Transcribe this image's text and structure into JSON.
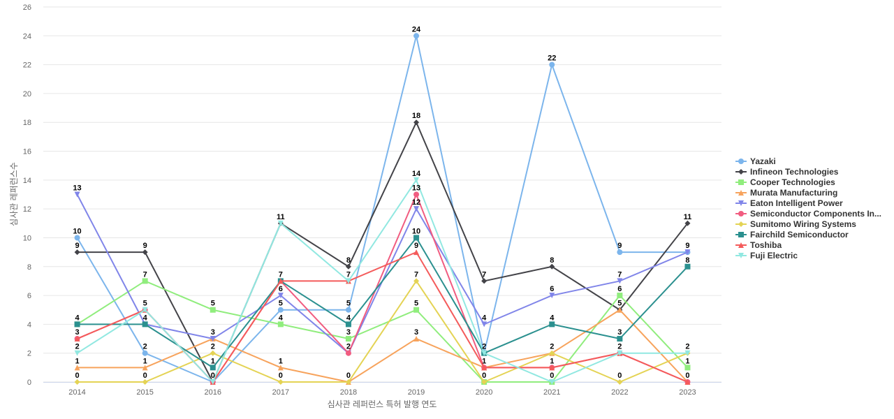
{
  "chart_data": {
    "type": "line",
    "title": "",
    "xlabel": "심사관 레퍼런스 특허 발행 연도",
    "ylabel": "심사관 레퍼런스수",
    "x": [
      "2014",
      "2015",
      "2016",
      "2017",
      "2018",
      "2019",
      "2020",
      "2021",
      "2022",
      "2023"
    ],
    "yticks": [
      0,
      2,
      4,
      6,
      8,
      10,
      12,
      14,
      16,
      18,
      20,
      22,
      24,
      26
    ],
    "ylim": [
      0,
      26
    ],
    "grid": true,
    "legend_position": "right",
    "series": [
      {
        "name": "Yazaki",
        "color": "#7cb5ec",
        "marker": "circle",
        "values": [
          10,
          2,
          0,
          5,
          5,
          24,
          2,
          22,
          9,
          9
        ]
      },
      {
        "name": "Infineon Technologies",
        "color": "#434348",
        "marker": "diamond",
        "values": [
          9,
          9,
          0,
          11,
          8,
          18,
          7,
          8,
          5,
          11
        ]
      },
      {
        "name": "Cooper Technologies",
        "color": "#90ed7d",
        "marker": "square",
        "values": [
          4,
          7,
          5,
          4,
          3,
          5,
          0,
          0,
          6,
          1
        ]
      },
      {
        "name": "Murata Manufacturing",
        "color": "#f7a35c",
        "marker": "triangle",
        "values": [
          1,
          1,
          3,
          1,
          0,
          3,
          1,
          2,
          5,
          0
        ]
      },
      {
        "name": "Eaton Intelligent Power",
        "color": "#8085e9",
        "marker": "triangle-down",
        "values": [
          13,
          4,
          3,
          6,
          2,
          12,
          4,
          6,
          7,
          9
        ]
      },
      {
        "name": "Semiconductor Components In...",
        "color": "#f15c80",
        "marker": "circle",
        "values": [
          3,
          5,
          0,
          7,
          2,
          13,
          1,
          1,
          2,
          0
        ]
      },
      {
        "name": "Sumitomo Wiring Systems",
        "color": "#e4d354",
        "marker": "diamond",
        "values": [
          0,
          0,
          2,
          0,
          0,
          7,
          0,
          2,
          0,
          2
        ]
      },
      {
        "name": "Fairchild Semiconductor",
        "color": "#2b908f",
        "marker": "square",
        "values": [
          4,
          4,
          1,
          7,
          4,
          10,
          2,
          4,
          3,
          8
        ]
      },
      {
        "name": "Toshiba",
        "color": "#f45b5b",
        "marker": "triangle",
        "values": [
          3,
          5,
          0,
          7,
          7,
          9,
          1,
          1,
          2,
          0
        ]
      },
      {
        "name": "Fuji Electric",
        "color": "#91e8e1",
        "marker": "triangle-down",
        "values": [
          2,
          5,
          0,
          11,
          7,
          14,
          2,
          0,
          2,
          2
        ]
      }
    ],
    "data_labels": [
      {
        "x": "2014",
        "labels": [
          "13",
          "10",
          "9",
          "4",
          "3",
          "2",
          "1",
          "0"
        ]
      },
      {
        "x": "2015",
        "labels": [
          "9",
          "7",
          "5",
          "4",
          "2",
          "1",
          "0"
        ]
      },
      {
        "x": "2016",
        "labels": [
          "5",
          "3",
          "2",
          "1",
          "0"
        ]
      },
      {
        "x": "2017",
        "labels": [
          "11",
          "7",
          "6",
          "5",
          "4",
          "1",
          "0"
        ]
      },
      {
        "x": "2018",
        "labels": [
          "8",
          "7",
          "5",
          "4",
          "3",
          "2",
          "0"
        ]
      },
      {
        "x": "2019",
        "labels": [
          "24",
          "18",
          "14",
          "13",
          "12",
          "10",
          "9",
          "7",
          "5",
          "3"
        ]
      },
      {
        "x": "2020",
        "labels": [
          "7",
          "4",
          "2",
          "1",
          "0"
        ]
      },
      {
        "x": "2021",
        "labels": [
          "22",
          "8",
          "6",
          "4",
          "2",
          "1",
          "0"
        ]
      },
      {
        "x": "2022",
        "labels": [
          "9",
          "7",
          "6",
          "5",
          "3",
          "2",
          "0"
        ]
      },
      {
        "x": "2023",
        "labels": [
          "11",
          "9",
          "8",
          "2",
          "1",
          "0"
        ]
      }
    ]
  }
}
